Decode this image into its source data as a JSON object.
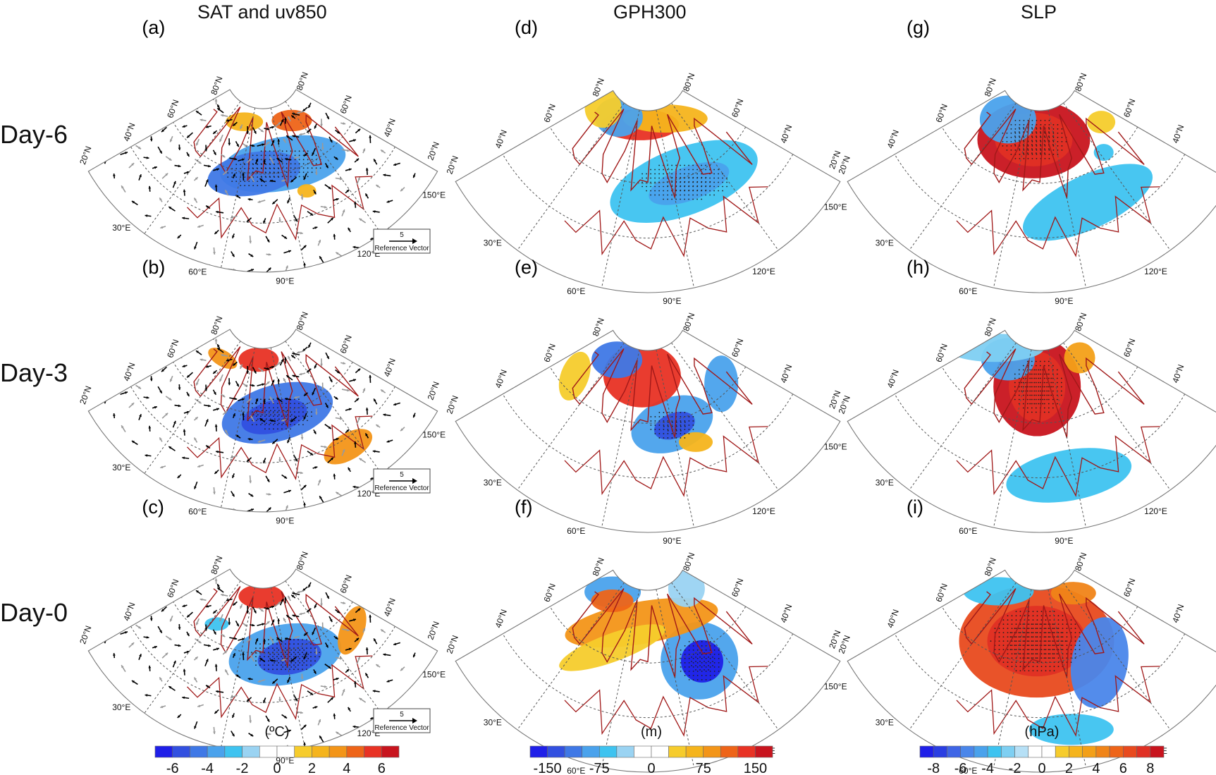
{
  "columns": [
    {
      "title": "SAT and uv850",
      "unit": "(ºC)",
      "colorbar": {
        "colors": [
          "#1f1fe8",
          "#3250e0",
          "#3f78e6",
          "#4aa2ec",
          "#3ec3f0",
          "#9ad3f2",
          "#ffffff",
          "#ffffff",
          "#f6cc2c",
          "#f5b41c",
          "#f39518",
          "#ee6418",
          "#e83224",
          "#c8141e"
        ],
        "ticks": [
          "-6",
          "-4",
          "-2",
          "0",
          "2",
          "4",
          "6"
        ]
      }
    },
    {
      "title": "GPH300",
      "unit": "(m)",
      "colorbar": {
        "colors": [
          "#1f1fe8",
          "#3250e0",
          "#3f78e6",
          "#4aa2ec",
          "#3ec3f0",
          "#9ad3f2",
          "#ffffff",
          "#ffffff",
          "#f6cc2c",
          "#f5b41c",
          "#f39518",
          "#ee6418",
          "#e83224",
          "#c8141e"
        ],
        "ticks": [
          "-150",
          "-75",
          "0",
          "75",
          "150"
        ]
      }
    },
    {
      "title": "SLP",
      "unit": "(hPa)",
      "colorbar": {
        "colors": [
          "#1f1fe8",
          "#2a3ee2",
          "#3f65e6",
          "#4a86ea",
          "#4aa2ec",
          "#3ec3f0",
          "#7ecff2",
          "#b6e0f6",
          "#ffffff",
          "#ffffff",
          "#f6cc2c",
          "#f5b41c",
          "#f3a018",
          "#f08418",
          "#ee6418",
          "#e84a1e",
          "#e03024",
          "#c8141e"
        ],
        "ticks": [
          "-8",
          "-6",
          "-4",
          "-2",
          "0",
          "2",
          "4",
          "6",
          "8"
        ]
      }
    }
  ],
  "rows": [
    {
      "label": "Day-6"
    },
    {
      "label": "Day-3"
    },
    {
      "label": "Day-0"
    }
  ],
  "panels": [
    {
      "id": "a",
      "label": "(a)",
      "var": "SAT",
      "vectors": true
    },
    {
      "id": "d",
      "label": "(d)",
      "var": "GPH"
    },
    {
      "id": "g",
      "label": "(g)",
      "var": "SLP"
    },
    {
      "id": "b",
      "label": "(b)",
      "var": "SAT",
      "vectors": true
    },
    {
      "id": "e",
      "label": "(e)",
      "var": "GPH"
    },
    {
      "id": "h",
      "label": "(h)",
      "var": "SLP"
    },
    {
      "id": "c",
      "label": "(c)",
      "var": "SAT",
      "vectors": true
    },
    {
      "id": "f",
      "label": "(f)",
      "var": "GPH"
    },
    {
      "id": "i",
      "label": "(i)",
      "var": "SLP"
    }
  ],
  "map_labels": {
    "lat_left": [
      "20°N",
      "40°N",
      "60°N",
      "80°N"
    ],
    "lat_right": [
      "80°N",
      "60°N",
      "40°N",
      "20°N"
    ],
    "lon": [
      "30°E",
      "60°E",
      "90°E",
      "120°E",
      "150°E"
    ]
  },
  "reference_vector": {
    "value": "5",
    "label": "Reference Vector"
  }
}
